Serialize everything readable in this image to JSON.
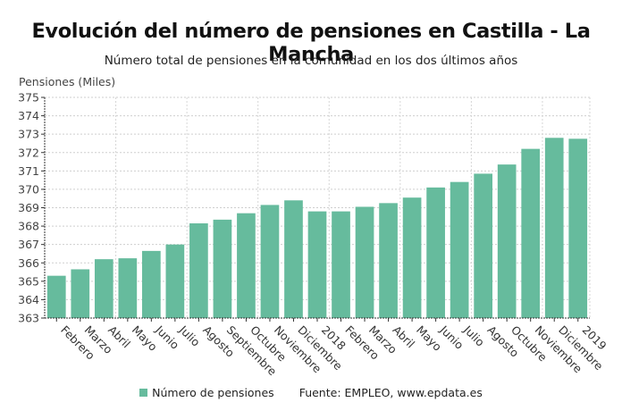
{
  "header": {
    "title": "Evolución del número de pensiones en Castilla - La Mancha",
    "subtitle": "Número total de pensiones en la comunidad en los dos últimos años"
  },
  "legend": {
    "series_label": "Número de pensiones",
    "source": "Fuente: EMPLEO, www.epdata.es"
  },
  "chart_data": {
    "type": "bar",
    "title": "Evolución del número de pensiones en Castilla - La Mancha",
    "subtitle": "Número total de pensiones en la comunidad en los dos últimos años",
    "xlabel": "",
    "ylabel": "Pensiones (Miles)",
    "ylim": [
      363,
      375
    ],
    "yticks": [
      363,
      364,
      365,
      366,
      367,
      368,
      369,
      370,
      371,
      372,
      373,
      374,
      375
    ],
    "grid": true,
    "legend_position": "bottom",
    "color": "#66bb9d",
    "categories": [
      "Febrero",
      "Marzo",
      "Abril",
      "Mayo",
      "Junio",
      "Julio",
      "Agosto",
      "Septiembre",
      "Octubre",
      "Noviembre",
      "Diciembre",
      "2018",
      "Febrero",
      "Marzo",
      "Abril",
      "Mayo",
      "Junio",
      "Julio",
      "Agosto",
      "Octubre",
      "Noviembre",
      "Diciembre",
      "2019"
    ],
    "series": [
      {
        "name": "Número de pensiones",
        "values": [
          365.3,
          365.65,
          366.2,
          366.25,
          366.65,
          367.0,
          368.15,
          368.35,
          368.7,
          369.15,
          369.4,
          368.8,
          368.8,
          369.05,
          369.25,
          369.55,
          370.1,
          370.4,
          370.85,
          371.35,
          372.2,
          372.8,
          372.75
        ]
      }
    ]
  }
}
